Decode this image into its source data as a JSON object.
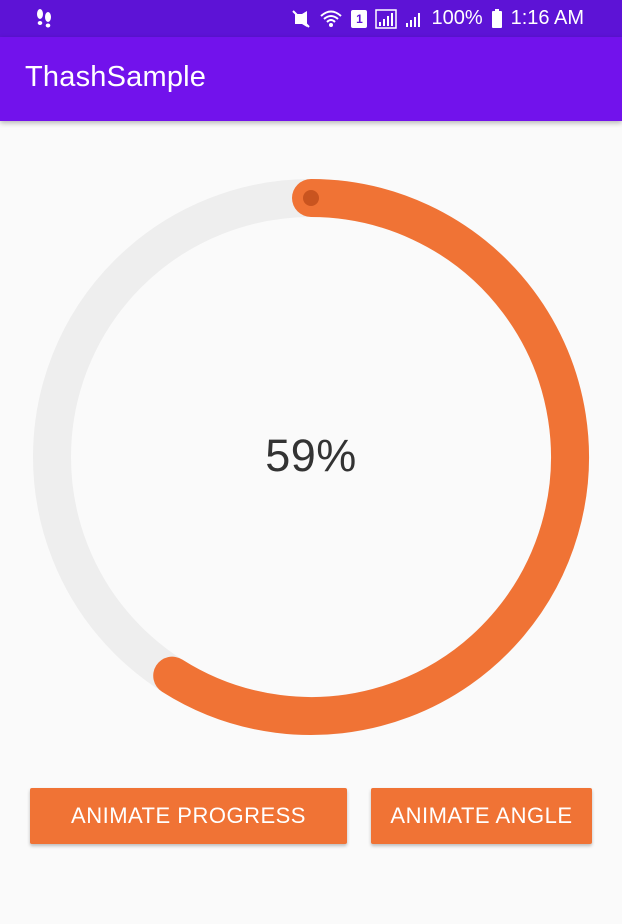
{
  "status_bar": {
    "battery_percent": "100%",
    "time": "1:16 AM",
    "sim_label": "1",
    "icons": [
      "footsteps-icon",
      "mute-vibrate-icon",
      "wifi-icon",
      "sim-icon",
      "signal-icon",
      "signal-icon-2",
      "battery-icon"
    ]
  },
  "app_bar": {
    "title": "ThashSample"
  },
  "progress": {
    "label": "59%",
    "value": 0.59,
    "progress_color": "#f07335",
    "track_color": "#eeeeee",
    "thumb_color": "#c9541f"
  },
  "buttons": {
    "animate_progress": "ANIMATE PROGRESS",
    "animate_angle": "ANIMATE ANGLE"
  },
  "colors": {
    "status_bar": "#5d13d6",
    "app_bar": "#7212ec",
    "background": "#fafafa",
    "accent": "#f07335"
  }
}
